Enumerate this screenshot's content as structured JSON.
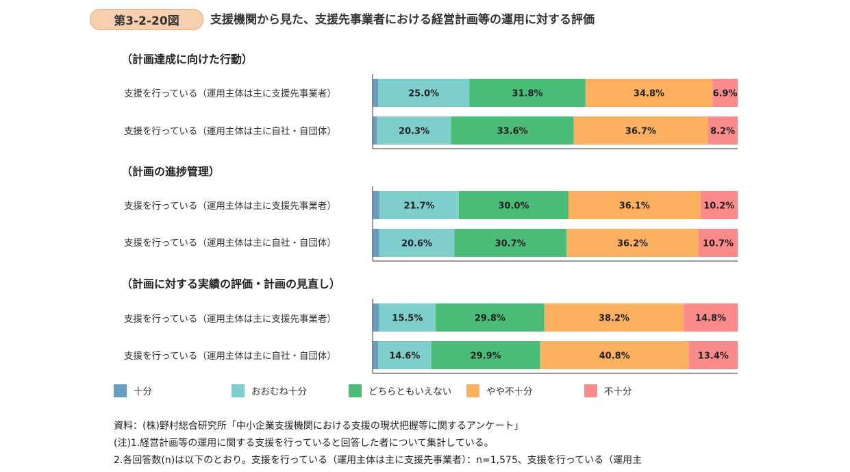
{
  "header": {
    "figure_number": "第3-2-20図",
    "title": "支援機関から見た、支援先事業者における経営計画等の運用に対する評価"
  },
  "colors": {
    "十分": "#6a9ec0",
    "おおむね十分": "#7ecfcb",
    "どちらともいえない": "#4bbc78",
    "やや不十分": "#fbb060",
    "不十分": "#fb8a8a"
  },
  "chart_data": {
    "type": "bar",
    "stacked": true,
    "orientation": "horizontal",
    "percent_stacked": true,
    "categories_order": [
      "十分",
      "おおむね十分",
      "どちらともいえない",
      "やや不十分",
      "不十分"
    ],
    "legend": [
      "十分",
      "おおむね十分",
      "どちらともいえない",
      "やや不十分",
      "不十分"
    ],
    "legend_position": "bottom",
    "groups": [
      {
        "title": "（計画達成に向けた行動）",
        "rows": [
          {
            "label": "支援を行っている（運用主体は主に支援先事業者）",
            "values": [
              1.5,
              25.0,
              31.8,
              34.8,
              6.9
            ],
            "labels": [
              "",
              "25.0%",
              "31.8%",
              "34.8%",
              "6.9%"
            ]
          },
          {
            "label": "支援を行っている（運用主体は主に自社・自団体）",
            "values": [
              1.2,
              20.3,
              33.6,
              36.7,
              8.2
            ],
            "labels": [
              "",
              "20.3%",
              "33.6%",
              "36.7%",
              "8.2%"
            ]
          }
        ]
      },
      {
        "title": "（計画の進捗管理）",
        "rows": [
          {
            "label": "支援を行っている（運用主体は主に支援先事業者）",
            "values": [
              1.9,
              21.7,
              30.0,
              36.1,
              10.2
            ],
            "labels": [
              "",
              "21.7%",
              "30.0%",
              "36.1%",
              "10.2%"
            ]
          },
          {
            "label": "支援を行っている（運用主体は主に自社・自団体）",
            "values": [
              1.8,
              20.6,
              30.7,
              36.2,
              10.7
            ],
            "labels": [
              "",
              "20.6%",
              "30.7%",
              "36.2%",
              "10.7%"
            ]
          }
        ]
      },
      {
        "title": "（計画に対する実績の評価・計画の見直し）",
        "rows": [
          {
            "label": "支援を行っている（運用主体は主に支援先事業者）",
            "values": [
              1.8,
              15.5,
              29.8,
              38.2,
              14.8
            ],
            "labels": [
              "",
              "15.5%",
              "29.8%",
              "38.2%",
              "14.8%"
            ]
          },
          {
            "label": "支援を行っている（運用主体は主に自社・自団体）",
            "values": [
              1.5,
              14.6,
              29.9,
              40.8,
              13.4
            ],
            "labels": [
              "",
              "14.6%",
              "29.9%",
              "40.8%",
              "13.4%"
            ]
          }
        ]
      }
    ]
  },
  "notes": [
    "資料：(株)野村総合研究所「中小企業支援機関における支援の現状把握等に関するアンケート」",
    "(注)1.経営計画等の運用に関する支援を行っていると回答した者について集計している。",
    "2.各回答数(n)は以下のとおり。支援を行っている（運用主体は主に支援先事業者）：n=1,575、支援を行っている（運用主"
  ]
}
